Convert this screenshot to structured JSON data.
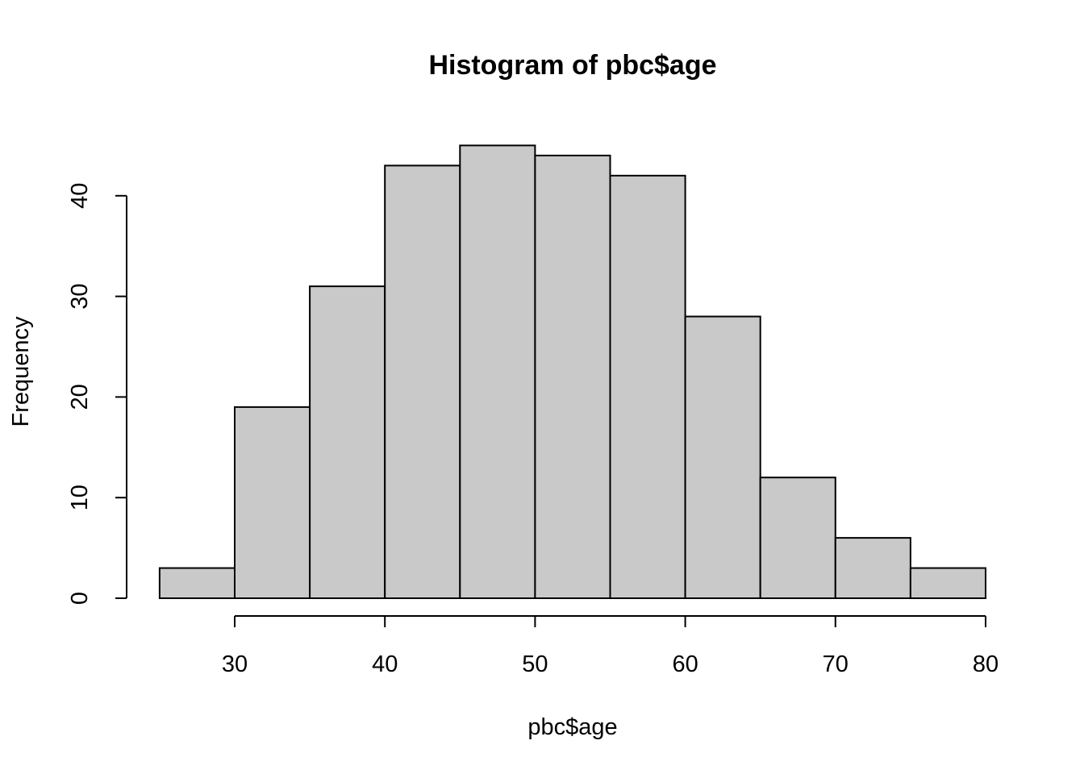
{
  "chart_data": {
    "type": "bar",
    "title": "Histogram of pbc$age",
    "xlabel": "pbc$age",
    "ylabel": "Frequency",
    "bins": [
      {
        "from": 25,
        "to": 30,
        "value": 3
      },
      {
        "from": 30,
        "to": 35,
        "value": 19
      },
      {
        "from": 35,
        "to": 40,
        "value": 31
      },
      {
        "from": 40,
        "to": 45,
        "value": 43
      },
      {
        "from": 45,
        "to": 50,
        "value": 45
      },
      {
        "from": 50,
        "to": 55,
        "value": 44
      },
      {
        "from": 55,
        "to": 60,
        "value": 42
      },
      {
        "from": 60,
        "to": 65,
        "value": 28
      },
      {
        "from": 65,
        "to": 70,
        "value": 12
      },
      {
        "from": 70,
        "to": 75,
        "value": 6
      },
      {
        "from": 75,
        "to": 80,
        "value": 3
      }
    ],
    "x_ticks": [
      "30",
      "40",
      "50",
      "60",
      "70",
      "80"
    ],
    "y_ticks": [
      "0",
      "10",
      "20",
      "30",
      "40"
    ],
    "xlim": [
      25,
      80
    ],
    "ylim": [
      0,
      45
    ],
    "grid": false,
    "bar_fill": "#c9c9c9",
    "bar_stroke": "#000000"
  }
}
